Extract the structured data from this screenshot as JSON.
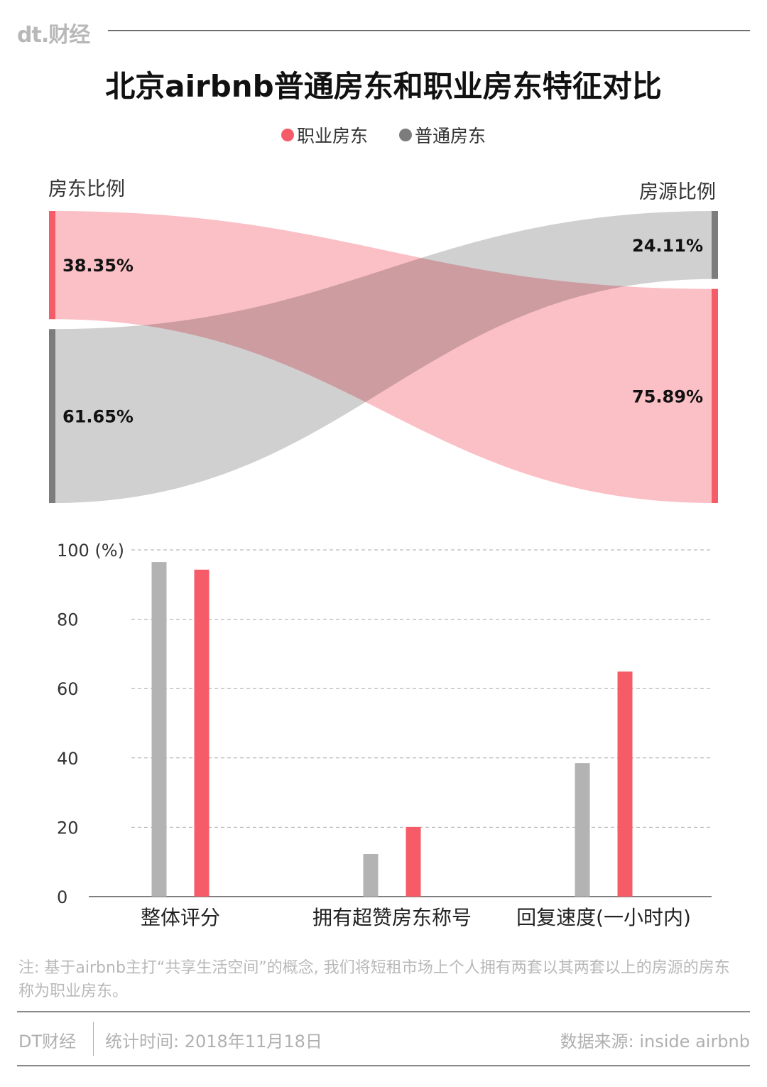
{
  "brand": {
    "logo_text": "dt.财经"
  },
  "title": "北京airbnb普通房东和职业房东特征对比",
  "legend": [
    {
      "label": "职业房东",
      "color": "#f65b68"
    },
    {
      "label": "普通房东",
      "color": "#7c7c7c"
    }
  ],
  "chart_data": [
    {
      "type": "sankey",
      "left_axis_label": "房东比例",
      "right_axis_label": "房源比例",
      "series": [
        {
          "name": "职业房东",
          "left_value": 38.35,
          "right_value": 75.89,
          "left_label": "38.35%",
          "right_label": "75.89%",
          "color": "#f65b68",
          "flow_color": "#fbb7bd"
        },
        {
          "name": "普通房东",
          "left_value": 61.65,
          "right_value": 24.11,
          "left_label": "61.65%",
          "right_label": "24.11%",
          "color": "#7c7c7c",
          "flow_color": "#c9c9c9"
        }
      ],
      "left_order": [
        "职业房东",
        "普通房东"
      ],
      "right_order": [
        "普通房东",
        "职业房东"
      ]
    },
    {
      "type": "bar",
      "categories": [
        "整体评分",
        "拥有超赞房东称号",
        "回复速度(一小时内)"
      ],
      "series": [
        {
          "name": "普通房东",
          "values": [
            96.5,
            12.3,
            38.5
          ],
          "color": "#b3b3b3"
        },
        {
          "name": "职业房东",
          "values": [
            94.3,
            20.1,
            64.9
          ],
          "color": "#f65b68"
        }
      ],
      "ylim": [
        0,
        100
      ],
      "yticks": [
        0,
        20,
        40,
        60,
        80,
        100
      ],
      "ytick_labels": [
        "0",
        "20",
        "40",
        "60",
        "80",
        "100 (%)"
      ],
      "grid": true
    }
  ],
  "note": "注: 基于airbnb主打“共享生活空间”的概念, 我们将短租市场上个人拥有两套以其两套以上的房源的房东称为职业房东。",
  "footer": {
    "brand": "DT财经",
    "date": "统计时间: 2018年11月18日",
    "source": "数据来源: inside airbnb"
  }
}
